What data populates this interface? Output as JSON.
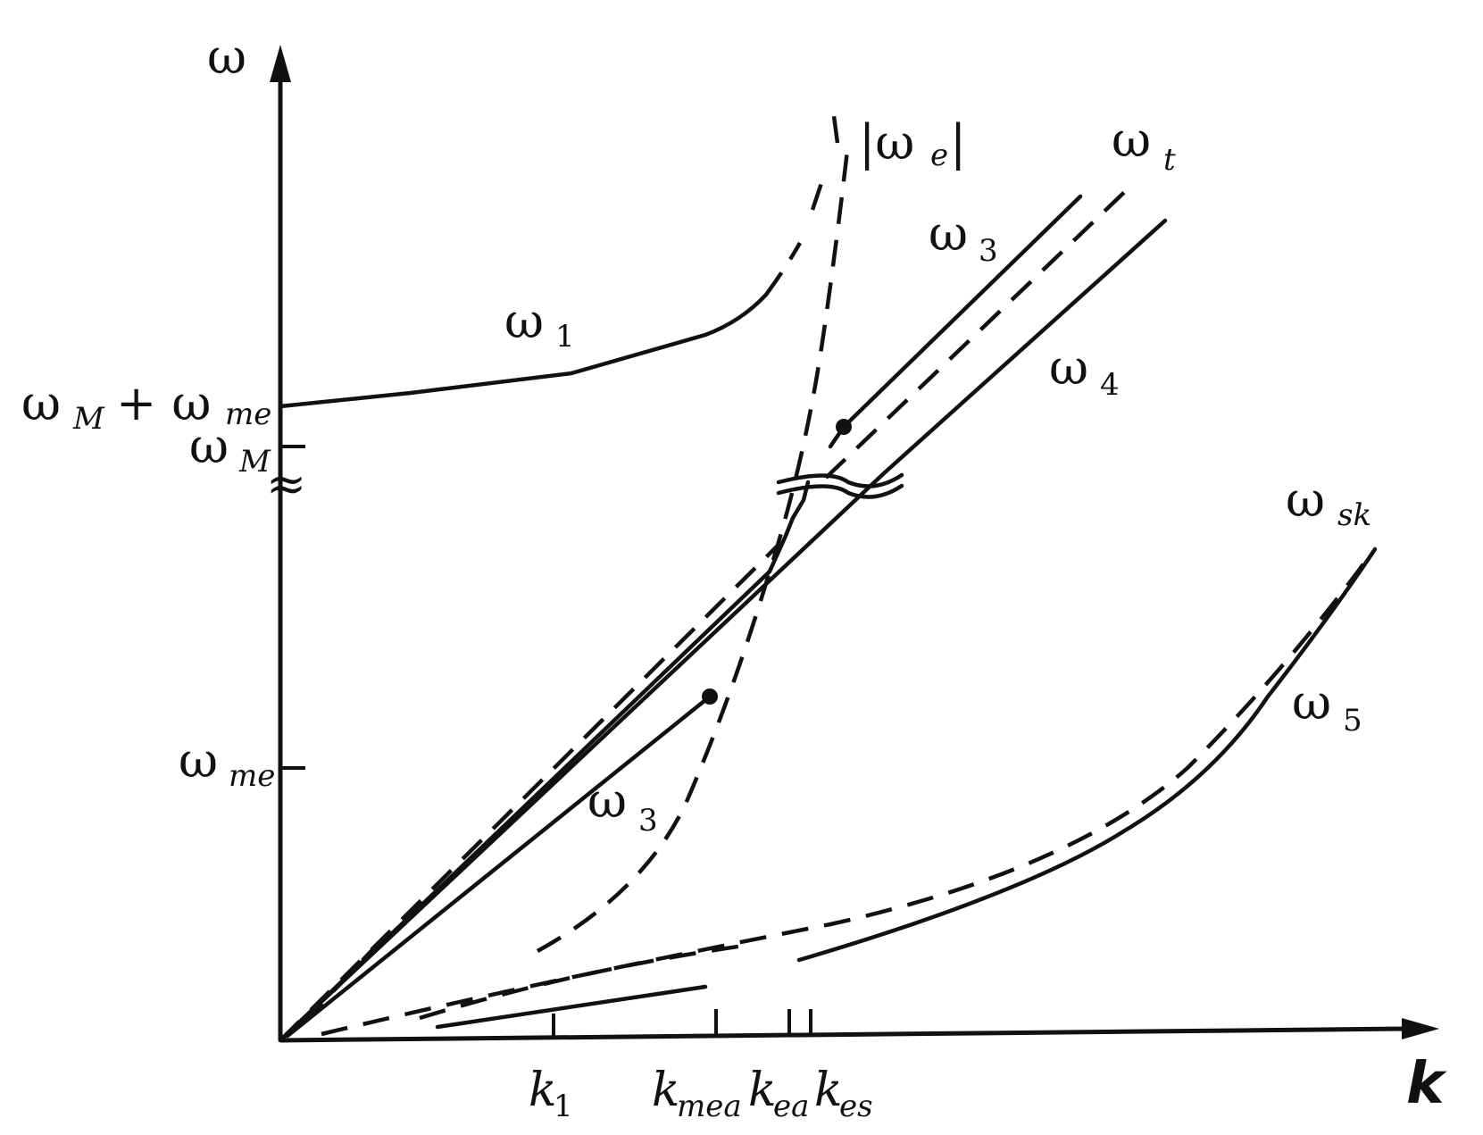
{
  "axes": {
    "y_label": "ω",
    "x_label": "k"
  },
  "y_ticks": {
    "wM_plus_wme": {
      "main": "ω",
      "sub1": "M",
      "plus": "+ ω",
      "sub2": "me"
    },
    "wM": {
      "main": "ω",
      "sub": "M"
    },
    "break_mark": "≈",
    "wme": {
      "main": "ω",
      "sub": "me"
    }
  },
  "x_ticks": {
    "k1": {
      "main": "k",
      "sub": "1"
    },
    "kmea": {
      "main": "k",
      "sub": "mea"
    },
    "kea": {
      "main": "k",
      "sub": "ea"
    },
    "kes": {
      "main": "k",
      "sub": "es"
    }
  },
  "curves": {
    "omega_1": {
      "main": "ω",
      "sub": "1"
    },
    "omega_e": {
      "main": "|ω",
      "sub": "e",
      "close": "|"
    },
    "omega_t": {
      "main": "ω",
      "sub": "t"
    },
    "omega_3_upper": {
      "main": "ω",
      "sub": "3"
    },
    "omega_4": {
      "main": "ω",
      "sub": "4"
    },
    "omega_3_lower": {
      "main": "ω",
      "sub": "3"
    },
    "omega_sk": {
      "main": "ω",
      "sub": "sk"
    },
    "omega_5": {
      "main": "ω",
      "sub": "5"
    }
  }
}
